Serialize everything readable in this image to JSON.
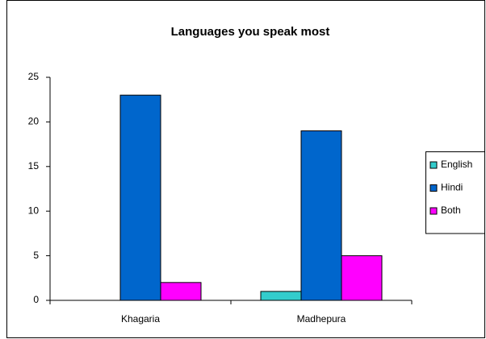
{
  "chart_data": {
    "type": "bar",
    "title": "Languages you speak most",
    "categories": [
      "Khagaria",
      "Madhepura"
    ],
    "series": [
      {
        "name": "English",
        "color": "#33cccc",
        "values": [
          0,
          1
        ]
      },
      {
        "name": "Hindi",
        "color": "#0066cc",
        "values": [
          23,
          19
        ]
      },
      {
        "name": "Both",
        "color": "#ff00ff",
        "values": [
          2,
          5
        ]
      }
    ],
    "ylim": [
      0,
      25
    ],
    "yticks": [
      0,
      5,
      10,
      15,
      20,
      25
    ],
    "grid": false,
    "legend": "right"
  }
}
